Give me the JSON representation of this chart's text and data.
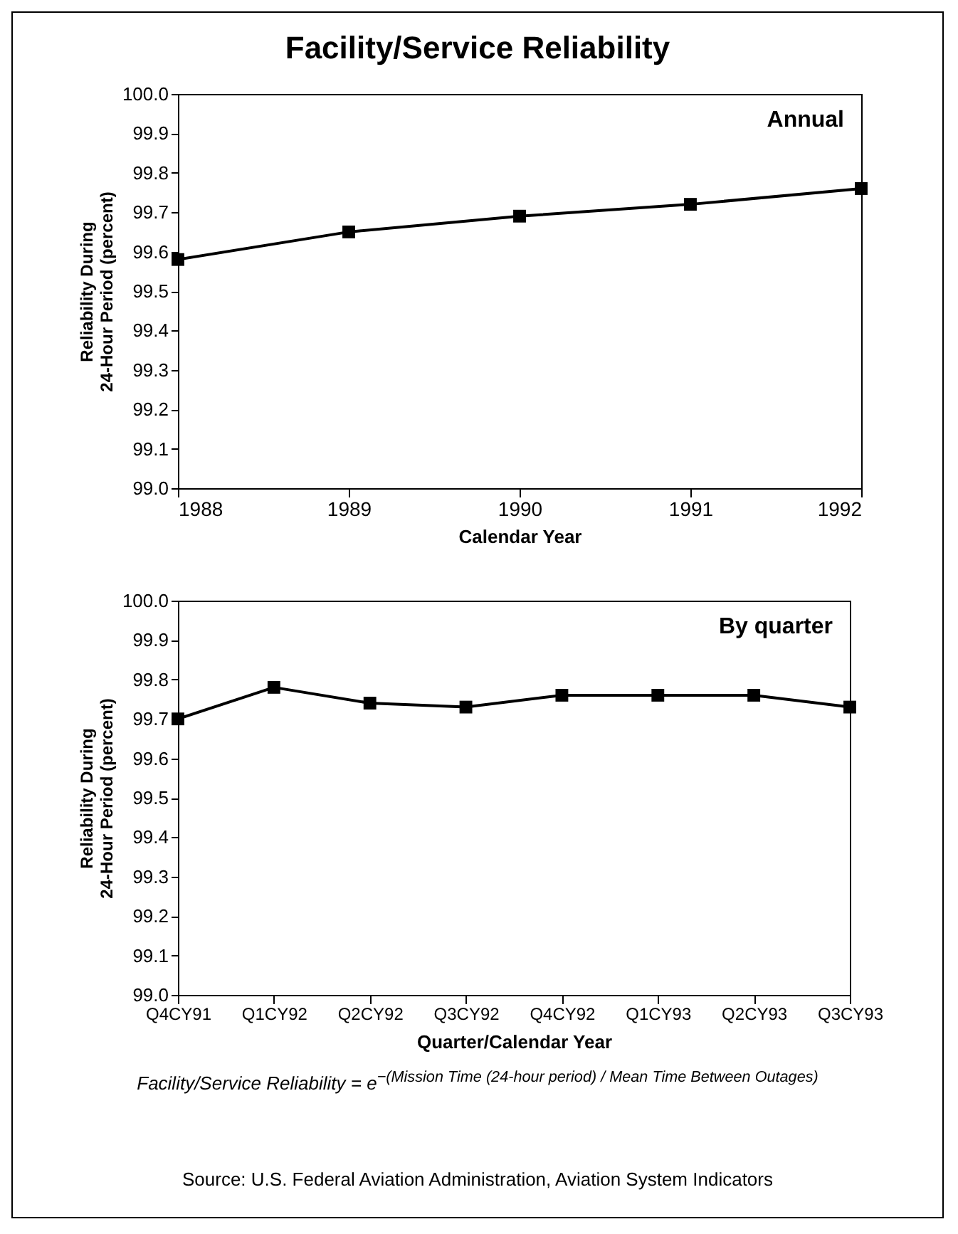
{
  "chart_data": [
    {
      "type": "line",
      "title": "Facility/Service Reliability",
      "annotations": [
        "Annual"
      ],
      "xlabel": "Calendar Year",
      "ylabel": "Reliability During 24-Hour Period (percent)",
      "x": [
        1988,
        1989,
        1990,
        1991,
        1992
      ],
      "xlim": [
        1988,
        1992
      ],
      "xticks": [
        1988,
        1989,
        1990,
        1991,
        1992
      ],
      "ylim": [
        99.0,
        100.0
      ],
      "yticks": [
        "99.0",
        "99.1",
        "99.2",
        "99.3",
        "99.4",
        "99.5",
        "99.6",
        "99.7",
        "99.8",
        "99.9",
        "100.0"
      ],
      "series": [
        {
          "color": "#000000",
          "values": [
            99.58,
            99.65,
            99.69,
            99.72,
            99.76
          ]
        }
      ],
      "marker": "square",
      "line_style": "solid",
      "grid": false
    },
    {
      "type": "line",
      "annotations": [
        "By quarter",
        "Facility/Service Reliability = e$^{−(Mission Time (24-hour period) / Mean Time Between Outages)}$",
        "Source: U.S. Federal Aviation Administration, Aviation System Indicators"
      ],
      "xlabel": "Quarter/Calendar Year",
      "ylabel": "Reliability During 24-Hour Period (percent)",
      "categories": [
        "Q4CY91",
        "Q1CY92",
        "Q2CY92",
        "Q3CY92",
        "Q4CY92",
        "Q1CY93",
        "Q2CY93",
        "Q3CY93"
      ],
      "ylim": [
        99.0,
        100.0
      ],
      "yticks": [
        {
          "value": 99.0,
          "label": "99.0"
        },
        {
          "value": 99.1,
          "label": "99.1"
        },
        {
          "value": 99.2,
          "label": "99.2"
        },
        {
          "value": 99.3,
          "label": "99.3"
        },
        {
          "value": 99.4,
          "label": "99.4"
        },
        {
          "value": 99.5,
          "label": "99.5"
        },
        {
          "value": 99.6,
          "label": "99.6"
        },
        {
          "value": 99.7,
          "label": "99.7"
        },
        {
          "value": 99.8,
          "label": "99.8"
        },
        {
          "value": 99.9,
          "label": "99.9"
        },
        {
          "value": 100.0,
          "label": "100.0"
        }
      ],
      "series": [
        {
          "color": "#000000",
          "values": [
            99.7,
            99.78,
            99.74,
            99.73,
            99.76,
            99.76,
            99.76,
            99.73
          ]
        }
      ],
      "marker": "square",
      "line_style": "solid",
      "grid": false
    }
  ]
}
